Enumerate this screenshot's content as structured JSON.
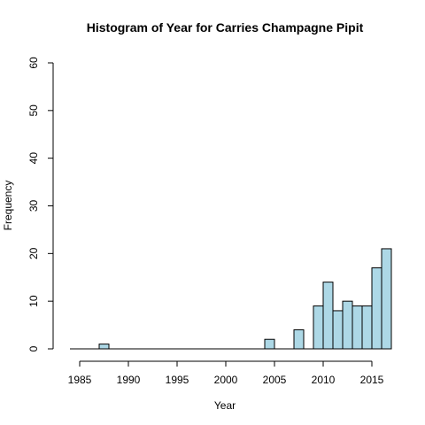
{
  "chart_data": {
    "type": "bar",
    "title": "Histogram of Year for Carries Champagne Pipit",
    "xlabel": "Year",
    "ylabel": "Frequency",
    "bar_color": "#add8e6",
    "xlim": [
      1983,
      2017
    ],
    "ylim": [
      0,
      60
    ],
    "x_ticks": [
      1985,
      1990,
      1995,
      2000,
      2005,
      2010,
      2015
    ],
    "y_ticks": [
      0,
      10,
      20,
      30,
      40,
      50,
      60
    ],
    "bin_width": 1,
    "bins": [
      {
        "x0": 1984,
        "x1": 1985,
        "count": 0
      },
      {
        "x0": 1985,
        "x1": 1986,
        "count": 0
      },
      {
        "x0": 1986,
        "x1": 1987,
        "count": 0
      },
      {
        "x0": 1987,
        "x1": 1988,
        "count": 1
      },
      {
        "x0": 1988,
        "x1": 1989,
        "count": 0
      },
      {
        "x0": 1989,
        "x1": 1990,
        "count": 0
      },
      {
        "x0": 1990,
        "x1": 1991,
        "count": 0
      },
      {
        "x0": 1991,
        "x1": 1992,
        "count": 0
      },
      {
        "x0": 1992,
        "x1": 1993,
        "count": 0
      },
      {
        "x0": 1993,
        "x1": 1994,
        "count": 0
      },
      {
        "x0": 1994,
        "x1": 1995,
        "count": 0
      },
      {
        "x0": 1995,
        "x1": 1996,
        "count": 0
      },
      {
        "x0": 1996,
        "x1": 1997,
        "count": 0
      },
      {
        "x0": 1997,
        "x1": 1998,
        "count": 0
      },
      {
        "x0": 1998,
        "x1": 1999,
        "count": 0
      },
      {
        "x0": 1999,
        "x1": 2000,
        "count": 0
      },
      {
        "x0": 2000,
        "x1": 2001,
        "count": 0
      },
      {
        "x0": 2001,
        "x1": 2002,
        "count": 0
      },
      {
        "x0": 2002,
        "x1": 2003,
        "count": 0
      },
      {
        "x0": 2003,
        "x1": 2004,
        "count": 0
      },
      {
        "x0": 2004,
        "x1": 2005,
        "count": 2
      },
      {
        "x0": 2005,
        "x1": 2006,
        "count": 0
      },
      {
        "x0": 2006,
        "x1": 2007,
        "count": 0
      },
      {
        "x0": 2007,
        "x1": 2008,
        "count": 4
      },
      {
        "x0": 2008,
        "x1": 2009,
        "count": 0
      },
      {
        "x0": 2009,
        "x1": 2010,
        "count": 9
      },
      {
        "x0": 2010,
        "x1": 2011,
        "count": 14
      },
      {
        "x0": 2011,
        "x1": 2012,
        "count": 8
      },
      {
        "x0": 2012,
        "x1": 2013,
        "count": 10
      },
      {
        "x0": 2013,
        "x1": 2014,
        "count": 9
      },
      {
        "x0": 2014,
        "x1": 2015,
        "count": 9
      },
      {
        "x0": 2015,
        "x1": 2016,
        "count": 17
      },
      {
        "x0": 2016,
        "x1": 2017,
        "count": 21
      }
    ]
  }
}
